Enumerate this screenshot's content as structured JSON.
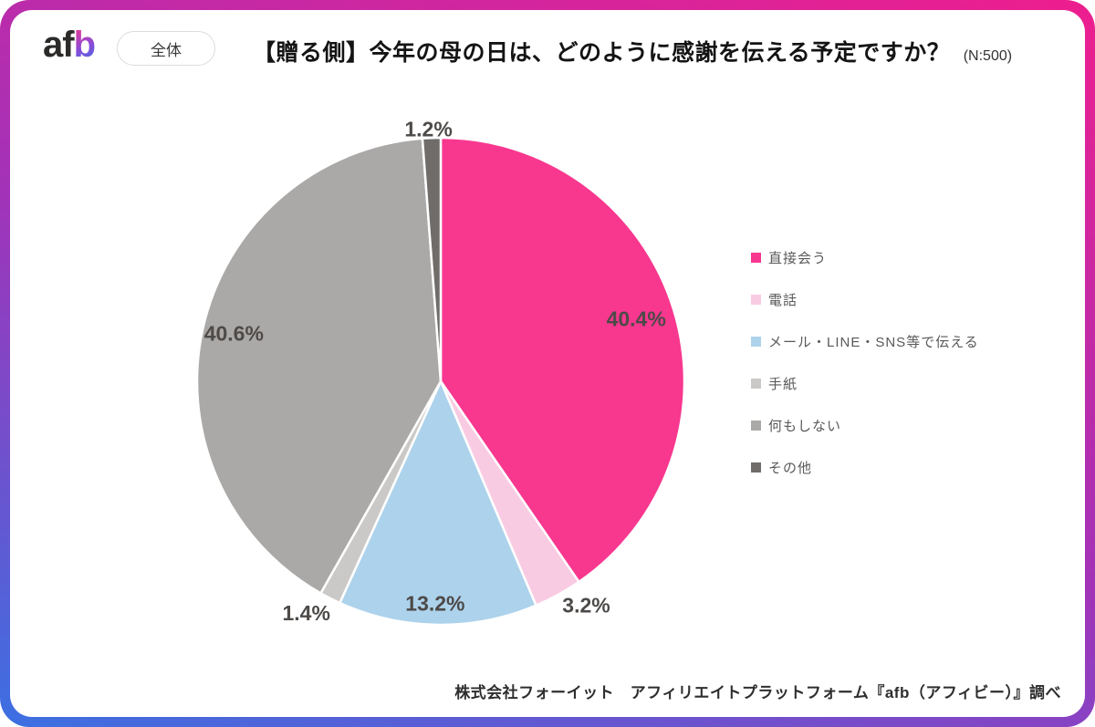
{
  "header": {
    "logo_af": "af",
    "logo_b": "b",
    "badge_label": "全体",
    "title": "【贈る側】今年の母の日は、どのように感謝を伝える予定ですか？",
    "sample_size": "(N:500)"
  },
  "chart_data": {
    "type": "pie",
    "title": "【贈る側】今年の母の日は、どのように感謝を伝える予定ですか？",
    "sample_size": 500,
    "unit": "%",
    "direction": "clockwise",
    "start_angle_deg": 0,
    "legend_position": "right",
    "slices": [
      {
        "label": "直接会う",
        "value": 40.4,
        "display_value": "40.4%",
        "color": "#F8378F",
        "label_placement": "inside"
      },
      {
        "label": "電話",
        "value": 3.2,
        "display_value": "3.2%",
        "color": "#F9CBE3",
        "label_placement": "outside"
      },
      {
        "label": "メール・LINE・SNS等で伝える",
        "value": 13.2,
        "display_value": "13.2%",
        "color": "#ADD2EB",
        "label_placement": "inside"
      },
      {
        "label": "手紙",
        "value": 1.4,
        "display_value": "1.4%",
        "color": "#CBC9C7",
        "label_placement": "outside"
      },
      {
        "label": "何もしない",
        "value": 40.6,
        "display_value": "40.6%",
        "color": "#ABA9A7",
        "label_placement": "inside"
      },
      {
        "label": "その他",
        "value": 1.2,
        "display_value": "1.2%",
        "color": "#6F6C6A",
        "label_placement": "outside"
      }
    ]
  },
  "footer": {
    "credit": "株式会社フォーイット　アフィリエイトプラットフォーム『afb（アフィビー）』調べ"
  },
  "colors": {
    "frame_gradient_top": "#EE1E8E",
    "frame_gradient_mid": "#A332B8",
    "frame_gradient_bottom": "#3B70E2",
    "slice_label_text": "#4D4A48",
    "legend_text": "#595959"
  }
}
